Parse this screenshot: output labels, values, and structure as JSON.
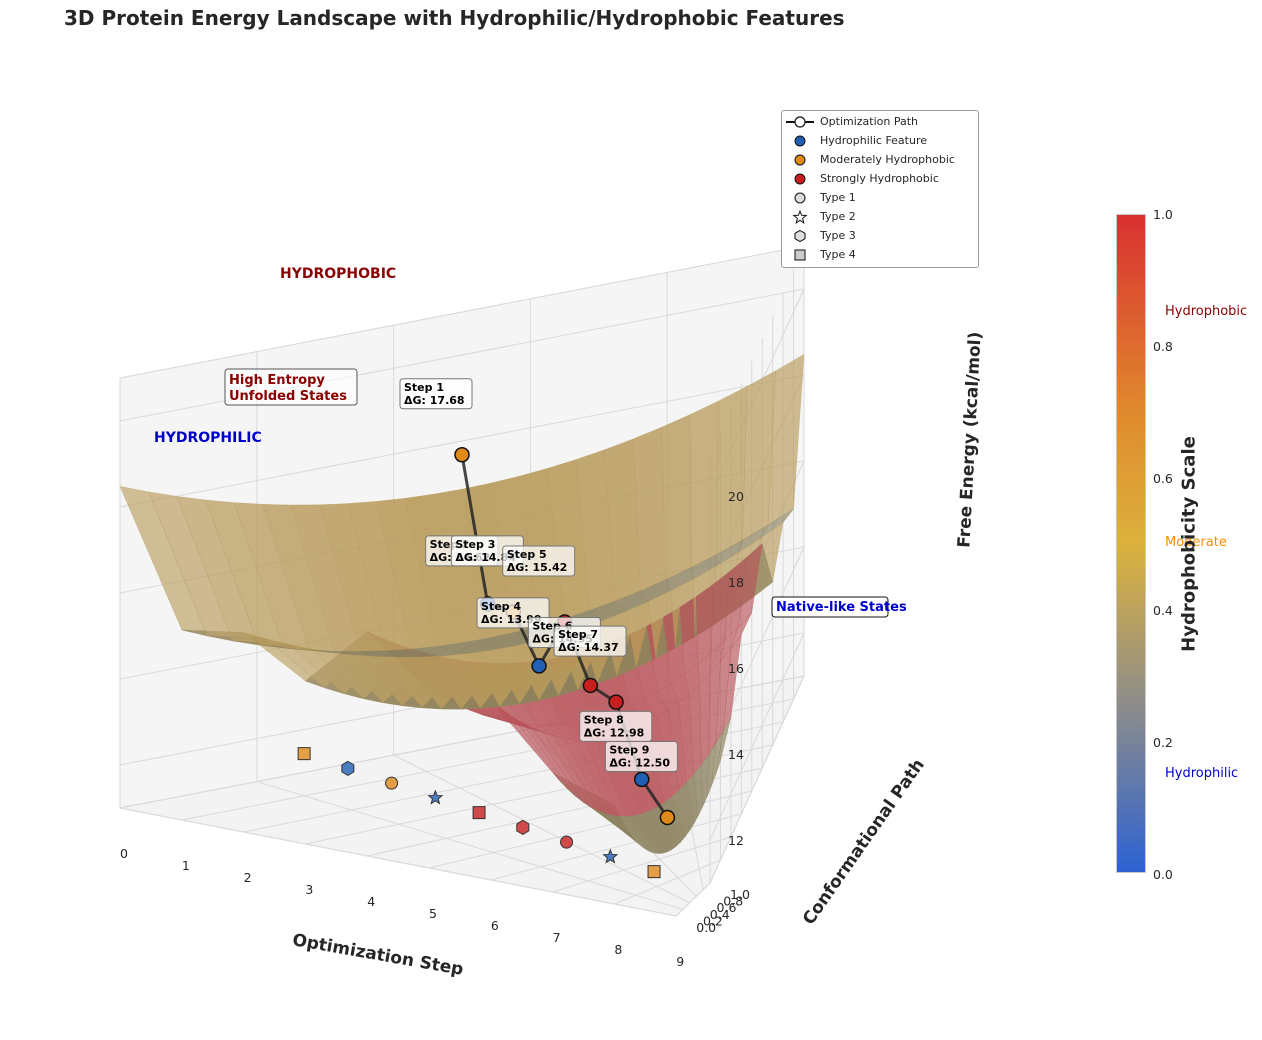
{
  "title": "3D Protein Energy Landscape with Hydrophilic/Hydrophobic Features",
  "chart_data": {
    "type": "surface3d",
    "xlabel": "Optimization Step",
    "ylabel": "Conformational Path",
    "zlabel": "Free Energy (kcal/mol)",
    "x_ticks": [
      "0",
      "1",
      "2",
      "3",
      "4",
      "5",
      "6",
      "7",
      "8",
      "9"
    ],
    "y_ticks": [
      "0.0",
      "0.2",
      "0.4",
      "0.6",
      "0.8",
      "1.0"
    ],
    "z_ticks": [
      "12",
      "14",
      "16",
      "18",
      "20"
    ],
    "path": [
      {
        "step": "Step 1",
        "dg": "ΔG: 17.68",
        "x": 0,
        "y": 0.5,
        "z": 17.68,
        "class": "moderate"
      },
      {
        "step": "Step 2",
        "dg": "ΔG: 14.62",
        "x": 1,
        "y": 0.5,
        "z": 14.62,
        "class": "hydrophilic"
      },
      {
        "step": "Step 3",
        "dg": "ΔG: 14.84",
        "x": 2,
        "y": 0.5,
        "z": 14.84,
        "class": "moderate"
      },
      {
        "step": "Step 4",
        "dg": "ΔG: 13.99",
        "x": 3,
        "y": 0.5,
        "z": 13.99,
        "class": "hydrophilic"
      },
      {
        "step": "Step 5",
        "dg": "ΔG: 15.42",
        "x": 4,
        "y": 0.5,
        "z": 15.42,
        "class": "hydrophobic"
      },
      {
        "step": "Step 6",
        "dg": "ΔG: 14.35",
        "x": 5,
        "y": 0.5,
        "z": 14.35,
        "class": "hydrophobic"
      },
      {
        "step": "Step 7",
        "dg": "ΔG: 14.37",
        "x": 6,
        "y": 0.5,
        "z": 14.37,
        "class": "hydrophobic"
      },
      {
        "step": "Step 8",
        "dg": "ΔG: 12.98",
        "x": 7,
        "y": 0.5,
        "z": 12.98,
        "class": "hydrophilic"
      },
      {
        "step": "Step 9",
        "dg": "ΔG: 12.50",
        "x": 8,
        "y": 0.5,
        "z": 12.5,
        "class": "moderate"
      }
    ],
    "annotations": {
      "hydrophobic": "HYDROPHOBIC",
      "hydrophilic": "HYDROPHILIC",
      "high_entropy": "High Entropy\nUnfolded States",
      "native": "Native-like States"
    },
    "legend": [
      {
        "label": "Optimization Path",
        "kind": "path"
      },
      {
        "label": "Hydrophilic Feature",
        "kind": "dot",
        "color": "#1f5fb4"
      },
      {
        "label": "Moderately Hydrophobic",
        "kind": "dot",
        "color": "#e08a1a"
      },
      {
        "label": "Strongly Hydrophobic",
        "kind": "dot",
        "color": "#c81e1e"
      },
      {
        "label": "Type 1",
        "kind": "circle"
      },
      {
        "label": "Type 2",
        "kind": "star"
      },
      {
        "label": "Type 3",
        "kind": "hexagon"
      },
      {
        "label": "Type 4",
        "kind": "square"
      }
    ],
    "colorbar": {
      "label": "Hydrophobicity Scale",
      "ticks": [
        "0.0",
        "0.2",
        "0.4",
        "0.6",
        "0.8",
        "1.0"
      ],
      "words": [
        {
          "text": "Hydrophobic",
          "color": "#8b0000",
          "value": 0.85
        },
        {
          "text": "Moderate",
          "color": "#ff8c00",
          "value": 0.5
        },
        {
          "text": "Hydrophilic",
          "color": "#0000cc",
          "value": 0.15
        }
      ]
    },
    "colors": {
      "hydrophilic": "#1f5fb4",
      "moderate": "#e08a1a",
      "hydrophobic": "#c81e1e",
      "path": "#262626"
    }
  }
}
